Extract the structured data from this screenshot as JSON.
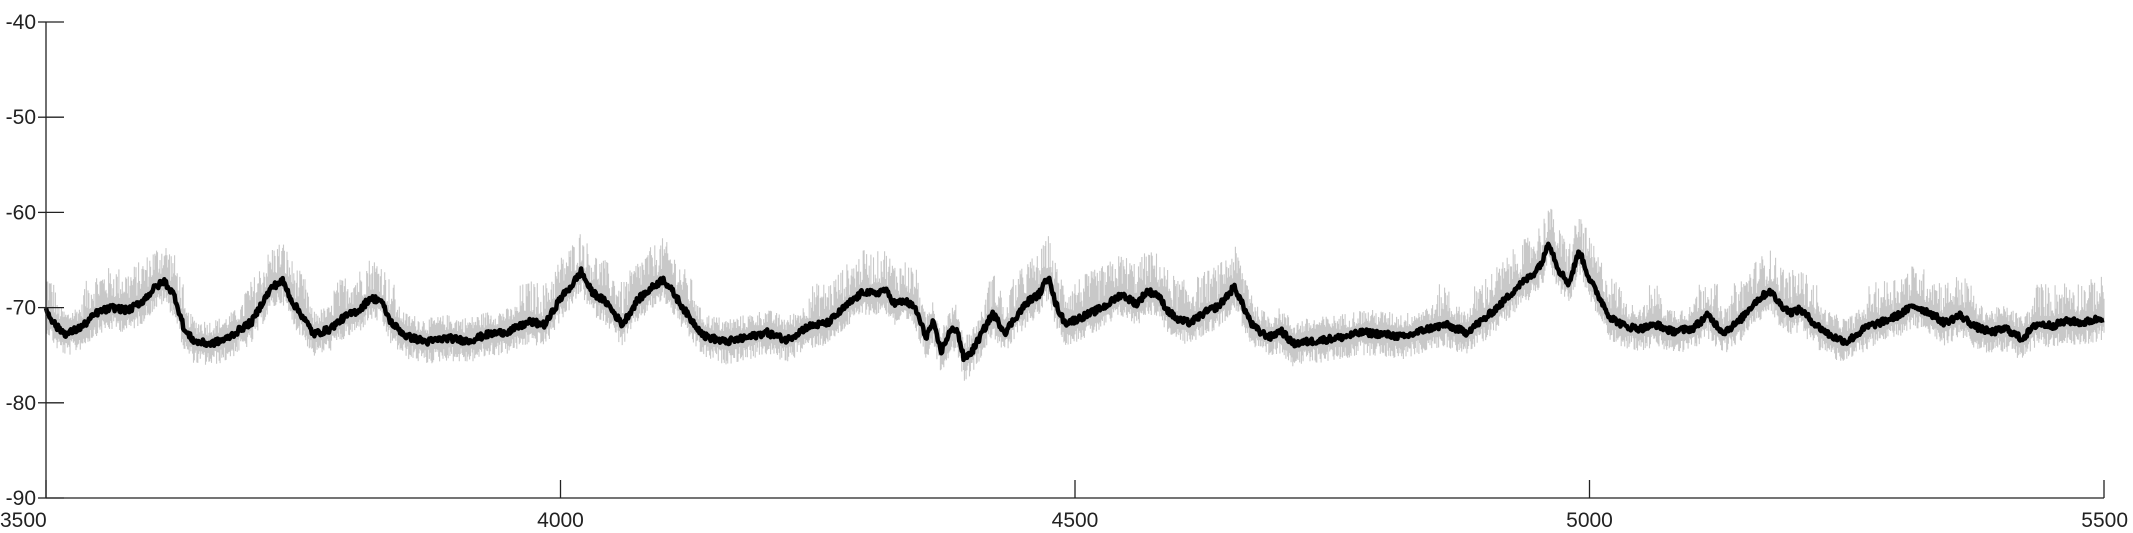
{
  "chart_data": {
    "type": "line",
    "title": "",
    "xlabel": "",
    "ylabel": "",
    "xlim": [
      3500,
      5500
    ],
    "ylim": [
      -90,
      -40
    ],
    "xticks": [
      3500,
      4000,
      4500,
      5000,
      5500
    ],
    "yticks": [
      -40,
      -50,
      -60,
      -70,
      -80,
      -90
    ],
    "xtick_labels": [
      "3500",
      "4000",
      "4500",
      "5000",
      "5500"
    ],
    "ytick_labels": [
      "-40",
      "-50",
      "-60",
      "-70",
      "-80",
      "-90"
    ],
    "grid": false,
    "series": [
      {
        "style": "thick black line with light gray noisy envelope",
        "color": "#000000",
        "envelope_color": "#c8c8c8",
        "x": [
          3500,
          3510,
          3520,
          3535,
          3550,
          3565,
          3580,
          3595,
          3605,
          3615,
          3625,
          3635,
          3645,
          3660,
          3675,
          3690,
          3700,
          3710,
          3720,
          3730,
          3740,
          3750,
          3760,
          3775,
          3790,
          3805,
          3815,
          3825,
          3835,
          3850,
          3870,
          3890,
          3910,
          3930,
          3950,
          3970,
          3985,
          4000,
          4010,
          4020,
          4030,
          4045,
          4060,
          4075,
          4090,
          4100,
          4110,
          4125,
          4140,
          4160,
          4180,
          4200,
          4220,
          4240,
          4260,
          4280,
          4295,
          4305,
          4315,
          4325,
          4335,
          4345,
          4355,
          4362,
          4370,
          4378,
          4385,
          4392,
          4400,
          4410,
          4420,
          4432,
          4445,
          4455,
          4465,
          4475,
          4480,
          4490,
          4500,
          4515,
          4530,
          4545,
          4560,
          4570,
          4580,
          4590,
          4600,
          4612,
          4625,
          4640,
          4655,
          4665,
          4672,
          4680,
          4690,
          4700,
          4712,
          4725,
          4740,
          4760,
          4780,
          4800,
          4820,
          4840,
          4860,
          4880,
          4900,
          4915,
          4930,
          4945,
          4955,
          4960,
          4970,
          4980,
          4990,
          5000,
          5010,
          5020,
          5035,
          5050,
          5065,
          5080,
          5100,
          5115,
          5130,
          5145,
          5160,
          5175,
          5185,
          5195,
          5205,
          5220,
          5235,
          5250,
          5260,
          5270,
          5285,
          5300,
          5315,
          5330,
          5345,
          5360,
          5375,
          5390,
          5405,
          5420,
          5435,
          5450,
          5465,
          5480,
          5500
        ],
        "values": [
          -70.2,
          -72.0,
          -72.8,
          -72.0,
          -70.5,
          -70.0,
          -70.3,
          -69.2,
          -68.0,
          -67.2,
          -68.8,
          -72.5,
          -73.6,
          -73.8,
          -73.3,
          -72.2,
          -71.5,
          -69.5,
          -67.8,
          -67.2,
          -69.5,
          -71.0,
          -72.8,
          -72.3,
          -71.0,
          -70.2,
          -69.0,
          -69.2,
          -71.5,
          -73.0,
          -73.6,
          -73.2,
          -73.5,
          -72.8,
          -72.5,
          -71.5,
          -71.8,
          -69.0,
          -67.8,
          -66.2,
          -68.3,
          -69.5,
          -71.8,
          -69.2,
          -67.8,
          -67.0,
          -68.5,
          -71.0,
          -73.0,
          -73.6,
          -73.2,
          -72.6,
          -73.4,
          -72.0,
          -71.6,
          -69.6,
          -68.3,
          -68.6,
          -68.1,
          -69.6,
          -69.3,
          -70.1,
          -73.1,
          -71.6,
          -74.6,
          -72.6,
          -72.1,
          -75.4,
          -74.6,
          -72.6,
          -70.6,
          -72.6,
          -70.6,
          -69.3,
          -68.6,
          -66.6,
          -69.3,
          -71.6,
          -71.3,
          -70.6,
          -69.8,
          -68.6,
          -69.6,
          -68.3,
          -68.6,
          -70.3,
          -71.3,
          -71.6,
          -70.6,
          -69.8,
          -67.8,
          -70.2,
          -71.8,
          -72.6,
          -73.1,
          -72.4,
          -73.8,
          -73.6,
          -73.4,
          -73.1,
          -72.6,
          -72.8,
          -73.1,
          -72.3,
          -71.8,
          -72.6,
          -71.0,
          -69.5,
          -67.8,
          -66.5,
          -65.0,
          -63.0,
          -66.0,
          -67.5,
          -64.0,
          -67.0,
          -69.0,
          -71.0,
          -72.0,
          -72.2,
          -71.8,
          -72.5,
          -72.2,
          -70.8,
          -72.6,
          -71.5,
          -69.5,
          -68.2,
          -69.6,
          -70.5,
          -70.2,
          -71.8,
          -73.0,
          -73.6,
          -72.8,
          -72.0,
          -71.5,
          -70.8,
          -69.8,
          -70.5,
          -71.6,
          -70.8,
          -72.0,
          -72.6,
          -72.2,
          -73.3,
          -71.7,
          -71.9,
          -71.4,
          -71.6,
          -71.0
        ]
      }
    ]
  }
}
